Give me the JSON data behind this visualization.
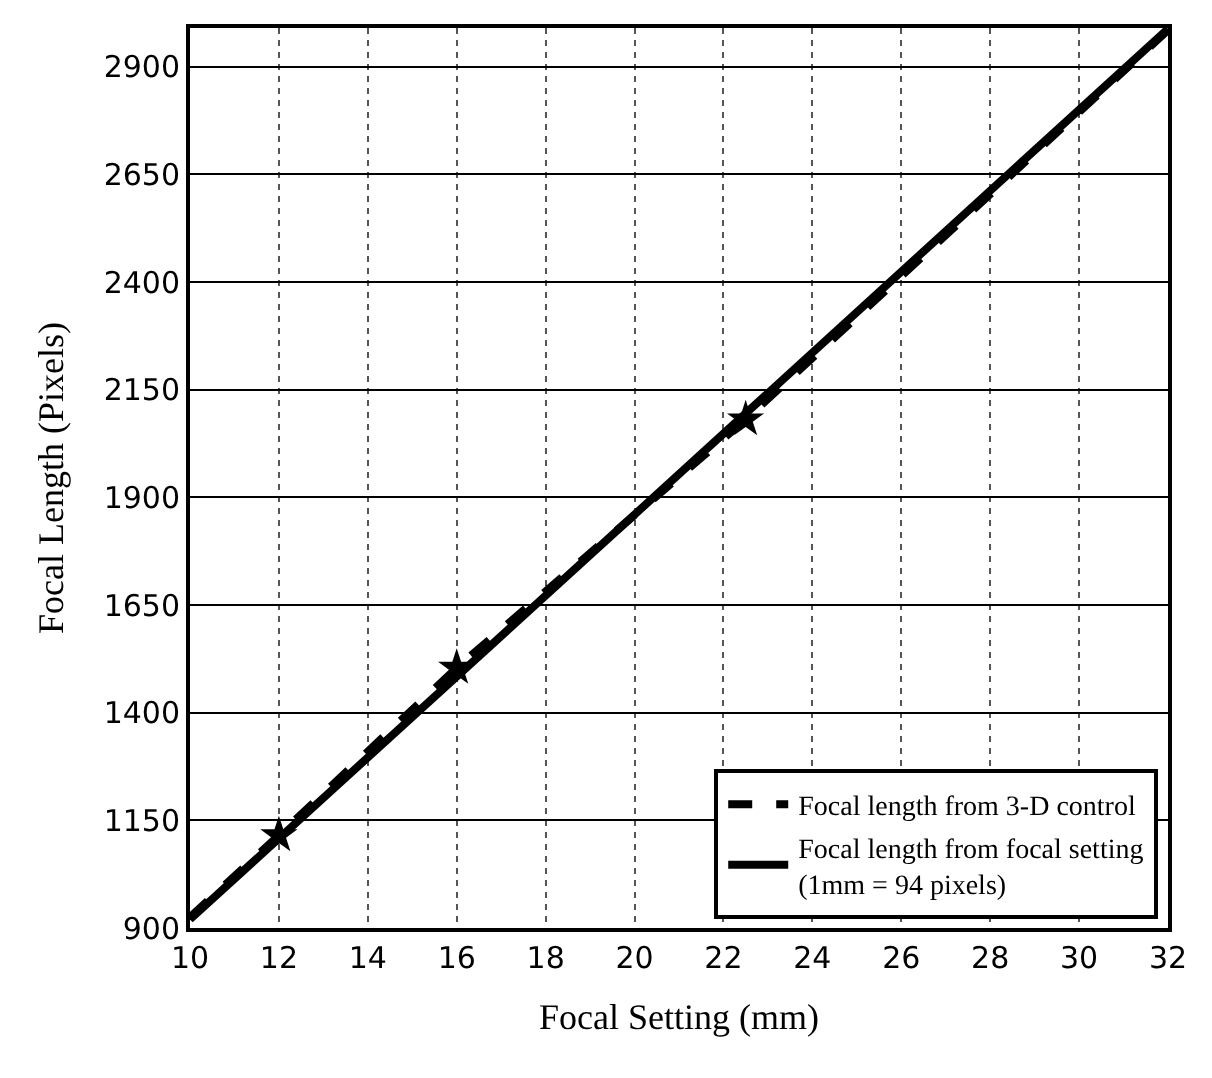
{
  "chart_data": {
    "type": "line",
    "xlabel": "Focal Setting (mm)",
    "ylabel": "Focal Length (Pixels)",
    "xlim": [
      10,
      32
    ],
    "xticks": [
      10,
      12,
      14,
      16,
      18,
      20,
      22,
      24,
      26,
      28,
      30,
      32
    ],
    "ylim": [
      900,
      2990
    ],
    "yticks": [
      900,
      1150,
      1400,
      1650,
      1900,
      2150,
      2400,
      2650,
      2900
    ],
    "grid": true,
    "legend": "bottom right",
    "series": [
      {
        "name": "Focal length from 3-D control",
        "color": "#000000",
        "line_style": "dashed",
        "x": [
          10,
          12,
          16,
          22.5,
          32
        ],
        "values": [
          925,
          1115,
          1504,
          2081,
          2985
        ]
      },
      {
        "name": "Focal length from focal setting\n(1mm = 94 pixels)",
        "color": "#000000",
        "line_style": "solid",
        "x": [
          10,
          32
        ],
        "values": [
          920,
          2988
        ]
      },
      {
        "type": "scatter",
        "marker": "star",
        "color": "#000000",
        "x": [
          12,
          16,
          22.5
        ],
        "values": [
          1115,
          1504,
          2081
        ]
      }
    ]
  }
}
